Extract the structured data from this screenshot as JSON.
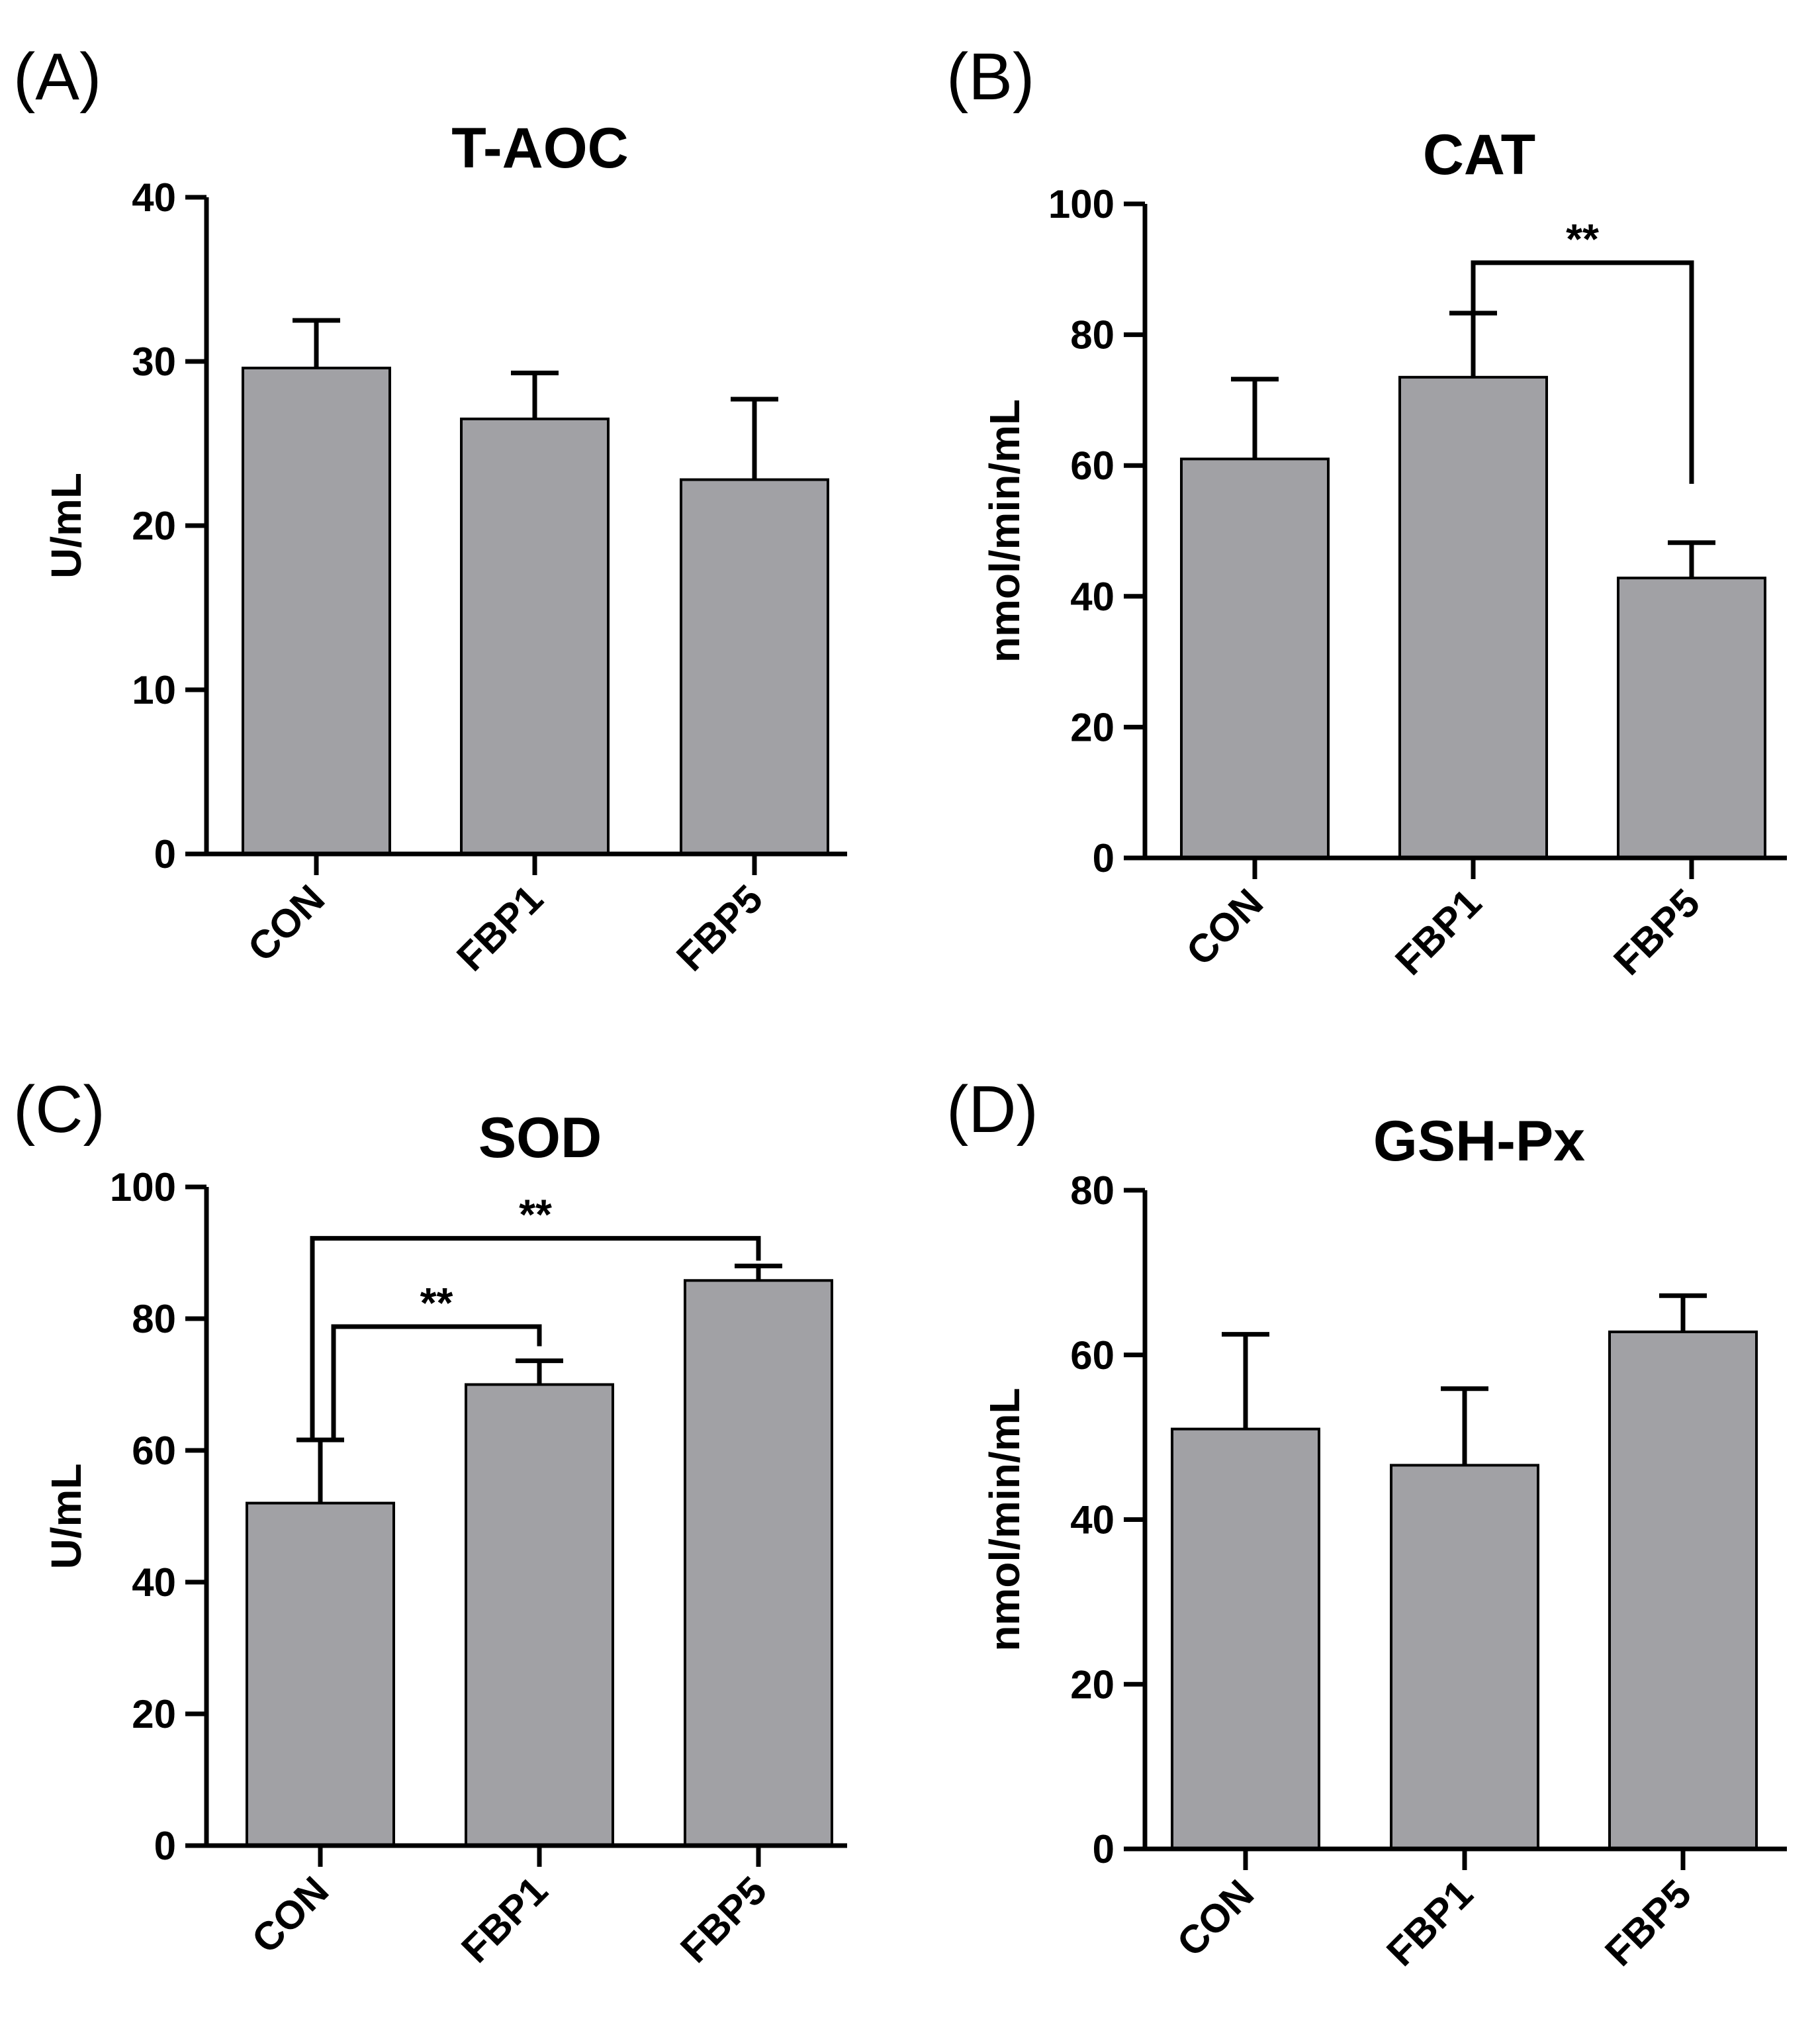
{
  "chart_data": [
    {
      "panel": "(A)",
      "type": "bar",
      "title": "T-AOC",
      "ylabel": "U/mL",
      "xlabel": "",
      "categories": [
        "CON",
        "FBP1",
        "FBP5"
      ],
      "values": [
        29.6,
        26.5,
        22.8
      ],
      "errors": [
        2.9,
        2.8,
        4.9
      ],
      "ylim": [
        0,
        40
      ],
      "yticks": [
        0,
        10,
        20,
        30,
        40
      ],
      "significance": [],
      "bar_color": "#a1a1a5",
      "grid": false
    },
    {
      "panel": "(B)",
      "type": "bar",
      "title": "CAT",
      "ylabel": "nmol/min/mL",
      "xlabel": "",
      "categories": [
        "CON",
        "FBP1",
        "FBP5"
      ],
      "values": [
        61,
        73.5,
        42.8
      ],
      "errors": [
        12.2,
        9.8,
        5.4
      ],
      "ylim": [
        0,
        100
      ],
      "yticks": [
        0,
        20,
        40,
        60,
        80,
        100
      ],
      "significance": [
        {
          "from": 1,
          "to": 2,
          "label": "**"
        }
      ],
      "bar_color": "#a1a1a5",
      "grid": false
    },
    {
      "panel": "(C)",
      "type": "bar",
      "title": "SOD",
      "ylabel": "U/mL",
      "xlabel": "",
      "categories": [
        "CON",
        "FBP1",
        "FBP5"
      ],
      "values": [
        52,
        70,
        85.8
      ],
      "errors": [
        9.6,
        3.6,
        2.2
      ],
      "ylim": [
        0,
        100
      ],
      "yticks": [
        0,
        20,
        40,
        60,
        80,
        100
      ],
      "significance": [
        {
          "from": 0,
          "to": 1,
          "label": "**"
        },
        {
          "from": 0,
          "to": 2,
          "label": "**"
        }
      ],
      "bar_color": "#a1a1a5",
      "grid": false
    },
    {
      "panel": "(D)",
      "type": "bar",
      "title": "GSH-Px",
      "ylabel": "nmol/min/mL",
      "xlabel": "",
      "categories": [
        "CON",
        "FBP1",
        "FBP5"
      ],
      "values": [
        51,
        46.6,
        62.8
      ],
      "errors": [
        11.5,
        9.3,
        4.4
      ],
      "ylim": [
        0,
        80
      ],
      "yticks": [
        0,
        20,
        40,
        60,
        80
      ],
      "significance": [],
      "bar_color": "#a1a1a5",
      "grid": false
    }
  ]
}
